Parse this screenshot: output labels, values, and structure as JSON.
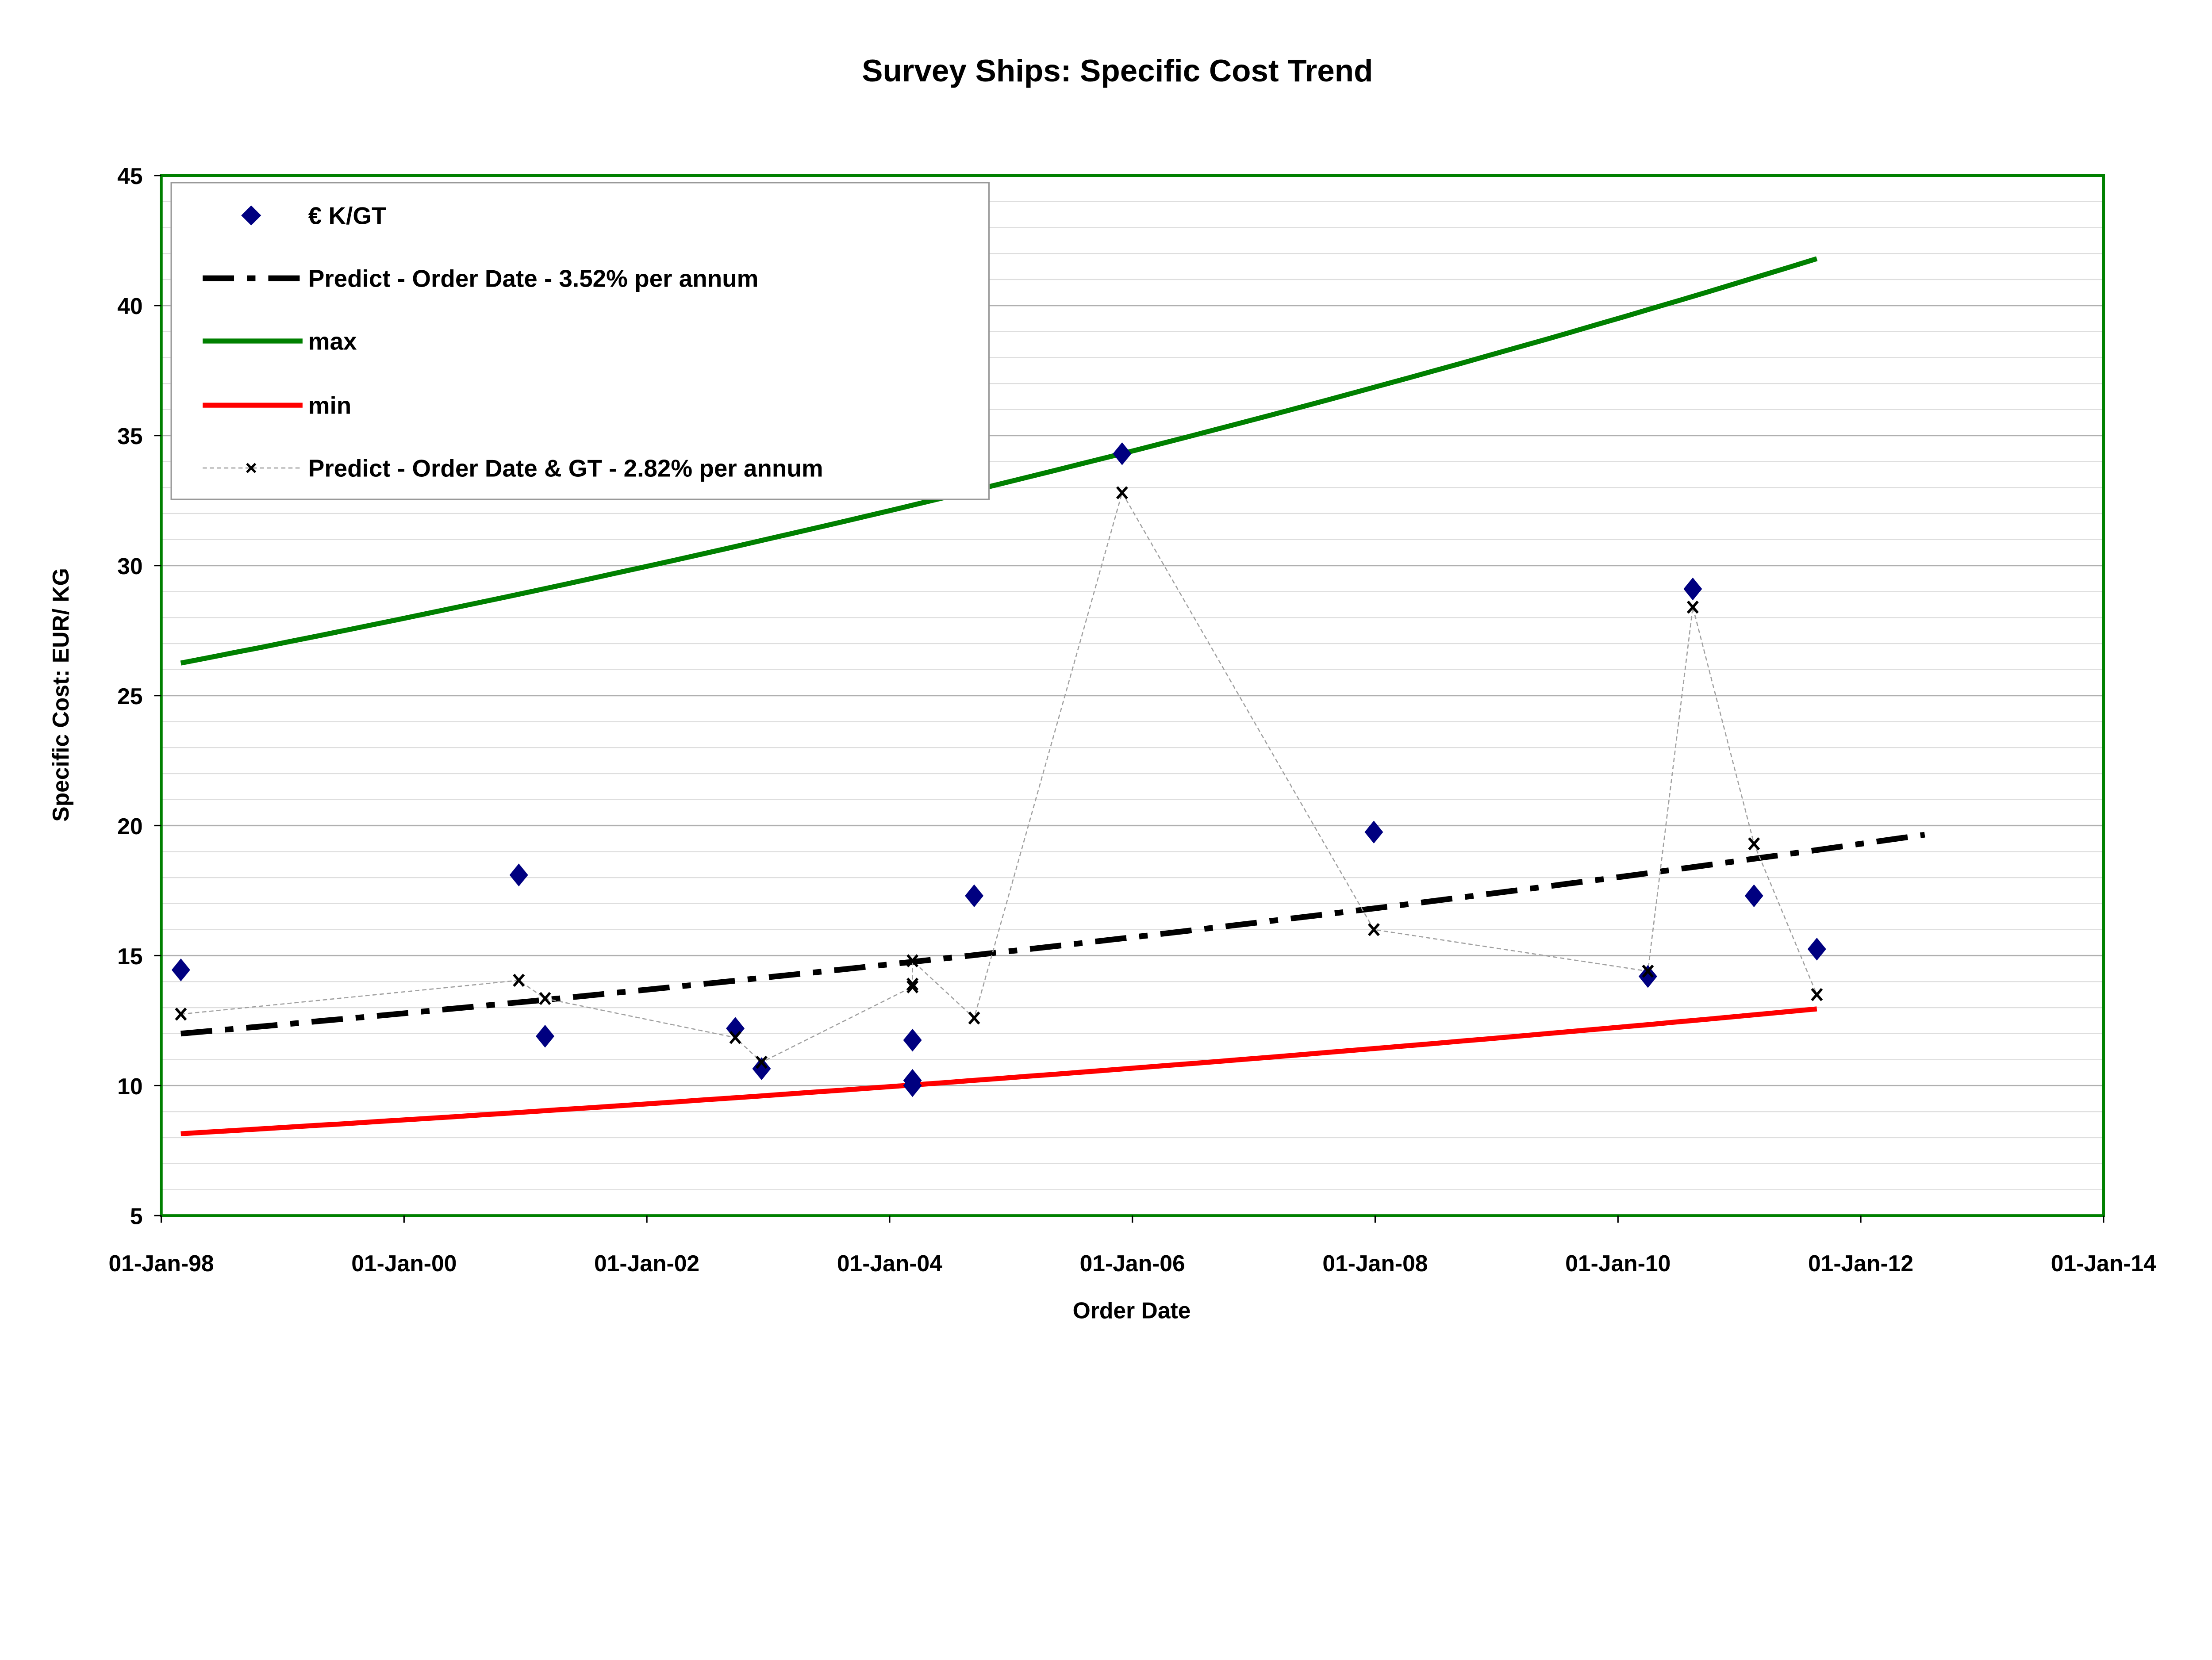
{
  "chart_data": {
    "type": "scatter",
    "title": "Survey Ships: Specific Cost Trend",
    "xlabel": "Order Date",
    "ylabel": "Specific Cost:  EUR/ KG",
    "xlim": [
      "1998-01-01",
      "2014-01-01"
    ],
    "ylim": [
      5,
      45
    ],
    "x_ticks": [
      "01-Jan-98",
      "01-Jan-00",
      "01-Jan-02",
      "01-Jan-04",
      "01-Jan-06",
      "01-Jan-08",
      "01-Jan-10",
      "01-Jan-12",
      "01-Jan-14"
    ],
    "y_ticks": [
      "5",
      "10",
      "15",
      "20",
      "25",
      "30",
      "35",
      "40",
      "45"
    ],
    "grid": {
      "major_y": 5,
      "minor_y": 1
    },
    "legend_position": "top-left",
    "plot_border_color": "#008000",
    "series": [
      {
        "name": "€ K/GT",
        "kind": "markers",
        "marker": "diamond",
        "color": "#000080",
        "points": [
          {
            "x": "1998-03-01",
            "y": 14.45
          },
          {
            "x": "2000-12-12",
            "y": 18.1
          },
          {
            "x": "2001-03-01",
            "y": 11.9
          },
          {
            "x": "2002-09-24",
            "y": 12.2
          },
          {
            "x": "2002-12-12",
            "y": 10.65
          },
          {
            "x": "2004-03-10",
            "y": 11.75
          },
          {
            "x": "2004-03-10",
            "y": 10.2
          },
          {
            "x": "2004-03-10",
            "y": 10.0
          },
          {
            "x": "2004-09-12",
            "y": 17.3
          },
          {
            "x": "2005-12-01",
            "y": 34.3
          },
          {
            "x": "2007-12-28",
            "y": 19.75
          },
          {
            "x": "2010-04-01",
            "y": 14.2
          },
          {
            "x": "2010-08-14",
            "y": 29.1
          },
          {
            "x": "2011-02-14",
            "y": 17.3
          },
          {
            "x": "2011-08-22",
            "y": 15.25
          }
        ]
      },
      {
        "name": "Predict - Order Date -  3.52% per annum",
        "kind": "dashdot-line",
        "color": "#000000",
        "growth_per_annum": 3.52,
        "points": [
          {
            "x": "1998-03-01",
            "y": 12.0
          },
          {
            "x": "2012-07-12",
            "y": 19.65
          }
        ]
      },
      {
        "name": "max",
        "kind": "line",
        "color": "#008000",
        "points": [
          {
            "x": "1998-03-01",
            "y": 26.25
          },
          {
            "x": "2011-08-22",
            "y": 41.8
          }
        ]
      },
      {
        "name": "min",
        "kind": "line",
        "color": "#ff0000",
        "points": [
          {
            "x": "1998-03-01",
            "y": 8.15
          },
          {
            "x": "2011-08-22",
            "y": 12.95
          }
        ]
      },
      {
        "name": "Predict - Order Date & GT -  2.82% per annum",
        "kind": "markers-thin-dashed-line",
        "marker": "x",
        "color": "#000000",
        "line_color": "#a0a0a0",
        "points": [
          {
            "x": "1998-03-01",
            "y": 12.75
          },
          {
            "x": "2000-12-12",
            "y": 14.05
          },
          {
            "x": "2001-03-01",
            "y": 13.35
          },
          {
            "x": "2002-09-24",
            "y": 11.85
          },
          {
            "x": "2002-12-12",
            "y": 10.9
          },
          {
            "x": "2004-03-10",
            "y": 13.8
          },
          {
            "x": "2004-03-10",
            "y": 13.9
          },
          {
            "x": "2004-03-10",
            "y": 14.8
          },
          {
            "x": "2004-09-12",
            "y": 12.6
          },
          {
            "x": "2005-12-01",
            "y": 32.8
          },
          {
            "x": "2007-12-28",
            "y": 16.0
          },
          {
            "x": "2010-04-01",
            "y": 14.4
          },
          {
            "x": "2010-08-14",
            "y": 28.4
          },
          {
            "x": "2011-02-14",
            "y": 19.3
          },
          {
            "x": "2011-08-22",
            "y": 13.5
          }
        ]
      }
    ]
  }
}
